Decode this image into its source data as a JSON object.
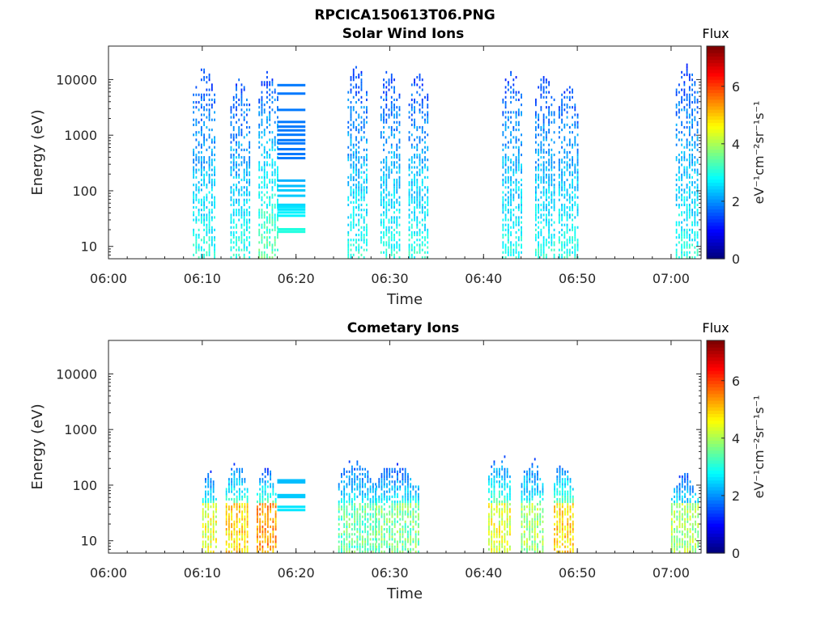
{
  "figure": {
    "title": "RPCICA150613T06.PNG"
  },
  "chart_data": [
    {
      "type": "heatmap",
      "title": "Solar Wind Ions",
      "xlabel": "Time",
      "ylabel": "Energy (eV)",
      "x_ticks": [
        "06:00",
        "06:10",
        "06:20",
        "06:30",
        "06:40",
        "06:50",
        "07:00"
      ],
      "x_range_minutes": [
        0,
        63.2
      ],
      "y_scale": "log",
      "y_ticks": [
        10,
        100,
        1000,
        10000
      ],
      "y_tick_labels": [
        "10",
        "100",
        "1000",
        "10000"
      ],
      "y_range": [
        6,
        40000
      ],
      "colorbar": {
        "label": "eV⁻¹cm⁻²sr⁻¹s⁻¹",
        "title": "Flux",
        "range": [
          0,
          7.4
        ],
        "ticks": [
          0,
          2,
          4,
          6
        ],
        "colormap": "jet"
      },
      "bursts": [
        {
          "t_start": 9.0,
          "t_end": 11.5,
          "e_min": 6,
          "e_max": 15000,
          "peak_flux": 3.0
        },
        {
          "t_start": 13.0,
          "t_end": 15.0,
          "e_min": 6,
          "e_max": 10000,
          "peak_flux": 3.0
        },
        {
          "t_start": 16.0,
          "t_end": 18.0,
          "e_min": 6,
          "e_max": 15000,
          "peak_flux": 3.5
        },
        {
          "t_start": 25.5,
          "t_end": 27.5,
          "e_min": 6,
          "e_max": 18000,
          "peak_flux": 3.0
        },
        {
          "t_start": 29.0,
          "t_end": 31.0,
          "e_min": 6,
          "e_max": 15000,
          "peak_flux": 3.0
        },
        {
          "t_start": 32.0,
          "t_end": 34.0,
          "e_min": 6,
          "e_max": 15000,
          "peak_flux": 3.0
        },
        {
          "t_start": 42.0,
          "t_end": 44.0,
          "e_min": 6,
          "e_max": 15000,
          "peak_flux": 3.0
        },
        {
          "t_start": 45.5,
          "t_end": 47.5,
          "e_min": 6,
          "e_max": 12000,
          "peak_flux": 3.0
        },
        {
          "t_start": 48.0,
          "t_end": 50.0,
          "e_min": 6,
          "e_max": 10000,
          "peak_flux": 3.0
        },
        {
          "t_start": 60.5,
          "t_end": 63.0,
          "e_min": 6,
          "e_max": 18000,
          "peak_flux": 3.0
        }
      ],
      "steady_bands": {
        "t_start": 18.0,
        "t_end": 21.0,
        "energies": [
          18,
          20,
          35,
          40,
          45,
          50,
          55,
          80,
          100,
          120,
          150,
          380,
          450,
          550,
          700,
          800,
          1000,
          1200,
          1400,
          1700,
          2800,
          5500,
          7800
        ],
        "flux": [
          3.0,
          3.0,
          2.7,
          2.7,
          2.6,
          2.6,
          2.5,
          2.4,
          2.4,
          2.3,
          2.2,
          1.8,
          1.8,
          1.8,
          1.8,
          1.8,
          1.8,
          1.8,
          1.8,
          1.8,
          1.8,
          1.8,
          1.8
        ]
      }
    },
    {
      "type": "heatmap",
      "title": "Cometary Ions",
      "xlabel": "Time",
      "ylabel": "Energy (eV)",
      "x_ticks": [
        "06:00",
        "06:10",
        "06:20",
        "06:30",
        "06:40",
        "06:50",
        "07:00"
      ],
      "x_range_minutes": [
        0,
        63.2
      ],
      "y_scale": "log",
      "y_ticks": [
        10,
        100,
        1000,
        10000
      ],
      "y_tick_labels": [
        "10",
        "100",
        "1000",
        "10000"
      ],
      "y_range": [
        6,
        40000
      ],
      "colorbar": {
        "label": "eV⁻¹cm⁻²sr⁻¹s⁻¹",
        "title": "Flux",
        "range": [
          0,
          7.4
        ],
        "ticks": [
          0,
          2,
          4,
          6
        ],
        "colormap": "jet"
      },
      "bursts": [
        {
          "t_start": 10.0,
          "t_end": 11.5,
          "e_min": 6,
          "e_max": 180,
          "peak_flux": 5.0
        },
        {
          "t_start": 12.5,
          "t_end": 15.0,
          "e_min": 6,
          "e_max": 250,
          "peak_flux": 5.5
        },
        {
          "t_start": 15.8,
          "t_end": 18.0,
          "e_min": 6,
          "e_max": 200,
          "peak_flux": 6.0
        },
        {
          "t_start": 24.5,
          "t_end": 28.5,
          "e_min": 6,
          "e_max": 300,
          "peak_flux": 4.0
        },
        {
          "t_start": 28.5,
          "t_end": 33.0,
          "e_min": 6,
          "e_max": 260,
          "peak_flux": 4.2
        },
        {
          "t_start": 40.5,
          "t_end": 43.0,
          "e_min": 6,
          "e_max": 400,
          "peak_flux": 5.0
        },
        {
          "t_start": 44.0,
          "t_end": 46.5,
          "e_min": 6,
          "e_max": 300,
          "peak_flux": 4.5
        },
        {
          "t_start": 47.5,
          "t_end": 49.5,
          "e_min": 6,
          "e_max": 300,
          "peak_flux": 5.5
        },
        {
          "t_start": 60.0,
          "t_end": 63.0,
          "e_min": 6,
          "e_max": 160,
          "peak_flux": 4.5
        }
      ],
      "steady_bands": {
        "t_start": 18.0,
        "t_end": 21.0,
        "energies": [
          35,
          40,
          60,
          65,
          110,
          120
        ],
        "flux": [
          2.6,
          2.6,
          2.4,
          2.4,
          2.3,
          2.3
        ]
      }
    }
  ]
}
